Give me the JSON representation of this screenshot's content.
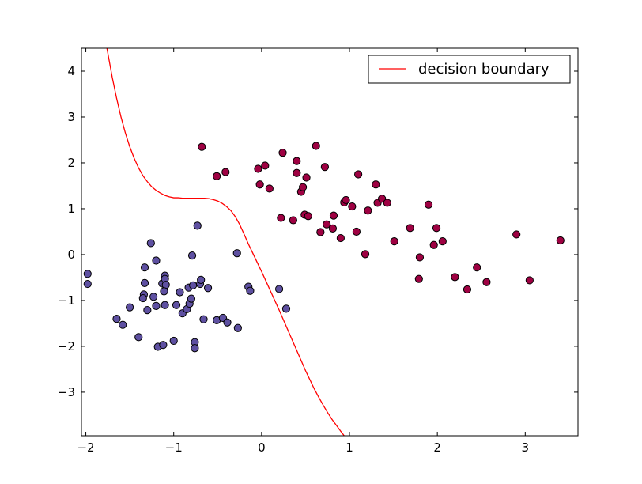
{
  "chart_data": {
    "type": "scatter",
    "title": "",
    "xlabel": "",
    "ylabel": "",
    "xlim": [
      -2.05,
      3.6
    ],
    "ylim": [
      -3.95,
      4.5
    ],
    "grid": false,
    "legend": {
      "placement": "top-right",
      "entries": [
        "decision boundary"
      ]
    },
    "x_ticks": [
      {
        "value": -2,
        "label": "−2"
      },
      {
        "value": -1,
        "label": "−1"
      },
      {
        "value": 0,
        "label": "0"
      },
      {
        "value": 1,
        "label": "1"
      },
      {
        "value": 2,
        "label": "2"
      },
      {
        "value": 3,
        "label": "3"
      }
    ],
    "y_ticks": [
      {
        "value": -3,
        "label": "−3"
      },
      {
        "value": -2,
        "label": "−2"
      },
      {
        "value": -1,
        "label": "−1"
      },
      {
        "value": 0,
        "label": "0"
      },
      {
        "value": 1,
        "label": "1"
      },
      {
        "value": 2,
        "label": "2"
      },
      {
        "value": 3,
        "label": "3"
      },
      {
        "value": 4,
        "label": "4"
      }
    ],
    "series": [
      {
        "color": "#5e50a1",
        "points": [
          [
            -1.98,
            -0.42
          ],
          [
            -1.98,
            -0.64
          ],
          [
            -1.65,
            -1.4
          ],
          [
            -1.58,
            -1.53
          ],
          [
            -1.5,
            -1.15
          ],
          [
            -1.4,
            -1.8
          ],
          [
            -1.33,
            -0.28
          ],
          [
            -1.33,
            -0.62
          ],
          [
            -1.34,
            -0.87
          ],
          [
            -1.35,
            -0.95
          ],
          [
            -1.3,
            -1.21
          ],
          [
            -1.26,
            0.25
          ],
          [
            -1.23,
            -0.92
          ],
          [
            -1.2,
            -0.13
          ],
          [
            -1.2,
            -1.12
          ],
          [
            -1.18,
            -2.01
          ],
          [
            -1.12,
            -1.97
          ],
          [
            -1.13,
            -0.63
          ],
          [
            -1.1,
            -0.46
          ],
          [
            -1.1,
            -0.53
          ],
          [
            -1.09,
            -0.66
          ],
          [
            -1.11,
            -0.8
          ],
          [
            -1.1,
            -1.1
          ],
          [
            -1.0,
            -1.88
          ],
          [
            -0.97,
            -1.1
          ],
          [
            -0.93,
            -0.82
          ],
          [
            -0.9,
            -1.28
          ],
          [
            -0.85,
            -1.19
          ],
          [
            -0.83,
            -0.72
          ],
          [
            -0.82,
            -1.07
          ],
          [
            -0.8,
            -0.96
          ],
          [
            -0.79,
            -0.02
          ],
          [
            -0.78,
            -0.67
          ],
          [
            -0.76,
            -1.91
          ],
          [
            -0.76,
            -2.04
          ],
          [
            -0.73,
            0.63
          ],
          [
            -0.7,
            -0.64
          ],
          [
            -0.69,
            -0.55
          ],
          [
            -0.66,
            -1.41
          ],
          [
            -0.61,
            -0.73
          ],
          [
            -0.51,
            -1.43
          ],
          [
            -0.44,
            -1.38
          ],
          [
            -0.39,
            -1.48
          ],
          [
            -0.28,
            0.03
          ],
          [
            -0.27,
            -1.6
          ],
          [
            -0.15,
            -0.7
          ],
          [
            -0.13,
            -0.79
          ],
          [
            0.2,
            -0.75
          ],
          [
            0.28,
            -1.18
          ]
        ]
      },
      {
        "color": "#9e0142",
        "points": [
          [
            -0.68,
            2.35
          ],
          [
            -0.51,
            1.71
          ],
          [
            -0.41,
            1.8
          ],
          [
            -0.04,
            1.87
          ],
          [
            -0.02,
            1.53
          ],
          [
            0.04,
            1.94
          ],
          [
            0.09,
            1.44
          ],
          [
            0.22,
            0.8
          ],
          [
            0.24,
            2.22
          ],
          [
            0.36,
            0.75
          ],
          [
            0.4,
            2.04
          ],
          [
            0.4,
            1.78
          ],
          [
            0.45,
            1.37
          ],
          [
            0.47,
            1.47
          ],
          [
            0.49,
            0.87
          ],
          [
            0.51,
            1.68
          ],
          [
            0.53,
            0.84
          ],
          [
            0.62,
            2.37
          ],
          [
            0.67,
            0.49
          ],
          [
            0.72,
            1.91
          ],
          [
            0.74,
            0.66
          ],
          [
            0.81,
            0.57
          ],
          [
            0.82,
            0.85
          ],
          [
            0.9,
            0.36
          ],
          [
            0.94,
            1.14
          ],
          [
            0.96,
            1.19
          ],
          [
            1.03,
            1.05
          ],
          [
            1.08,
            0.5
          ],
          [
            1.1,
            1.75
          ],
          [
            1.18,
            0.01
          ],
          [
            1.21,
            0.96
          ],
          [
            1.3,
            1.53
          ],
          [
            1.32,
            1.13
          ],
          [
            1.37,
            1.22
          ],
          [
            1.43,
            1.13
          ],
          [
            1.51,
            0.29
          ],
          [
            1.69,
            0.58
          ],
          [
            1.8,
            -0.06
          ],
          [
            1.79,
            -0.53
          ],
          [
            1.9,
            1.09
          ],
          [
            1.96,
            0.21
          ],
          [
            1.99,
            0.58
          ],
          [
            2.06,
            0.29
          ],
          [
            2.2,
            -0.49
          ],
          [
            2.34,
            -0.76
          ],
          [
            2.45,
            -0.28
          ],
          [
            2.56,
            -0.6
          ],
          [
            2.9,
            0.44
          ],
          [
            3.05,
            -0.56
          ],
          [
            3.4,
            0.31
          ]
        ]
      }
    ],
    "boundary": {
      "label": "decision boundary",
      "color": "#ff0000",
      "x": [
        -1.76,
        -1.7,
        -1.65,
        -1.6,
        -1.55,
        -1.5,
        -1.45,
        -1.4,
        -1.35,
        -1.3,
        -1.25,
        -1.2,
        -1.15,
        -1.1,
        -1.05,
        -1.0,
        -0.95,
        -0.9,
        -0.85,
        -0.8,
        -0.75,
        -0.7,
        -0.65,
        -0.6,
        -0.55,
        -0.5,
        -0.45,
        -0.4,
        -0.35,
        -0.3,
        -0.25,
        -0.2,
        -0.15,
        -0.1,
        -0.05,
        0.0,
        0.05,
        0.1,
        0.15,
        0.2,
        0.25,
        0.3,
        0.35,
        0.4,
        0.45,
        0.5,
        0.55,
        0.6,
        0.65,
        0.7,
        0.75,
        0.8,
        0.85,
        0.9,
        0.94
      ],
      "y": [
        4.5,
        3.87,
        3.41,
        3.0,
        2.65,
        2.35,
        2.1,
        1.89,
        1.72,
        1.59,
        1.48,
        1.4,
        1.34,
        1.29,
        1.26,
        1.24,
        1.24,
        1.23,
        1.23,
        1.23,
        1.23,
        1.23,
        1.23,
        1.22,
        1.2,
        1.17,
        1.12,
        1.05,
        0.96,
        0.83,
        0.66,
        0.45,
        0.23,
        0.03,
        -0.17,
        -0.37,
        -0.58,
        -0.79,
        -1.0,
        -1.21,
        -1.43,
        -1.65,
        -1.87,
        -2.09,
        -2.31,
        -2.53,
        -2.73,
        -2.93,
        -3.11,
        -3.28,
        -3.44,
        -3.59,
        -3.72,
        -3.85,
        -3.95
      ]
    }
  }
}
